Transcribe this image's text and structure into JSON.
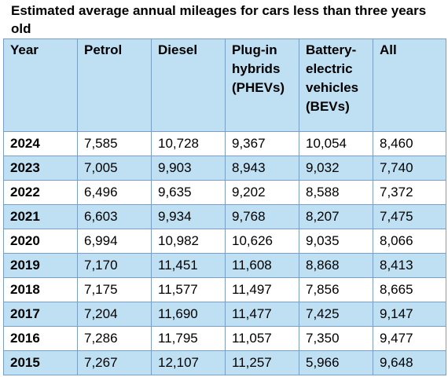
{
  "title": "Estimated average annual mileages for cars less than three years old",
  "colors": {
    "header_fill": "#bfe0f3",
    "alt_row_fill": "#bfe0f3",
    "border": "#7a9fc4"
  },
  "table": {
    "headers": {
      "year": "Year",
      "petrol": "Petrol",
      "diesel": "Diesel",
      "phev": "Plug-in hybrids (PHEVs)",
      "bev": "Battery-electric vehicles (BEVs)",
      "all": "All"
    },
    "rows": [
      {
        "year": "2024",
        "petrol": "7,585",
        "diesel": "10,728",
        "phev": "9,367",
        "bev": "10,054",
        "all": "8,460"
      },
      {
        "year": "2023",
        "petrol": "7,005",
        "diesel": "9,903",
        "phev": "8,943",
        "bev": "9,032",
        "all": "7,740"
      },
      {
        "year": "2022",
        "petrol": "6,496",
        "diesel": "9,635",
        "phev": "9,202",
        "bev": "8,588",
        "all": "7,372"
      },
      {
        "year": "2021",
        "petrol": "6,603",
        "diesel": "9,934",
        "phev": "9,768",
        "bev": "8,207",
        "all": "7,475"
      },
      {
        "year": "2020",
        "petrol": "6,994",
        "diesel": "10,982",
        "phev": "10,626",
        "bev": "9,035",
        "all": "8,066"
      },
      {
        "year": "2019",
        "petrol": "7,170",
        "diesel": "11,451",
        "phev": "11,608",
        "bev": "8,868",
        "all": "8,413"
      },
      {
        "year": "2018",
        "petrol": "7,175",
        "diesel": "11,577",
        "phev": "11,497",
        "bev": "7,856",
        "all": "8,665"
      },
      {
        "year": "2017",
        "petrol": "7,204",
        "diesel": "11,690",
        "phev": "11,477",
        "bev": "7,425",
        "all": "9,147"
      },
      {
        "year": "2016",
        "petrol": "7,286",
        "diesel": "11,795",
        "phev": "11,057",
        "bev": "7,350",
        "all": "9,477"
      },
      {
        "year": "2015",
        "petrol": "7,267",
        "diesel": "12,107",
        "phev": "11,257",
        "bev": "5,966",
        "all": "9,648"
      }
    ]
  }
}
